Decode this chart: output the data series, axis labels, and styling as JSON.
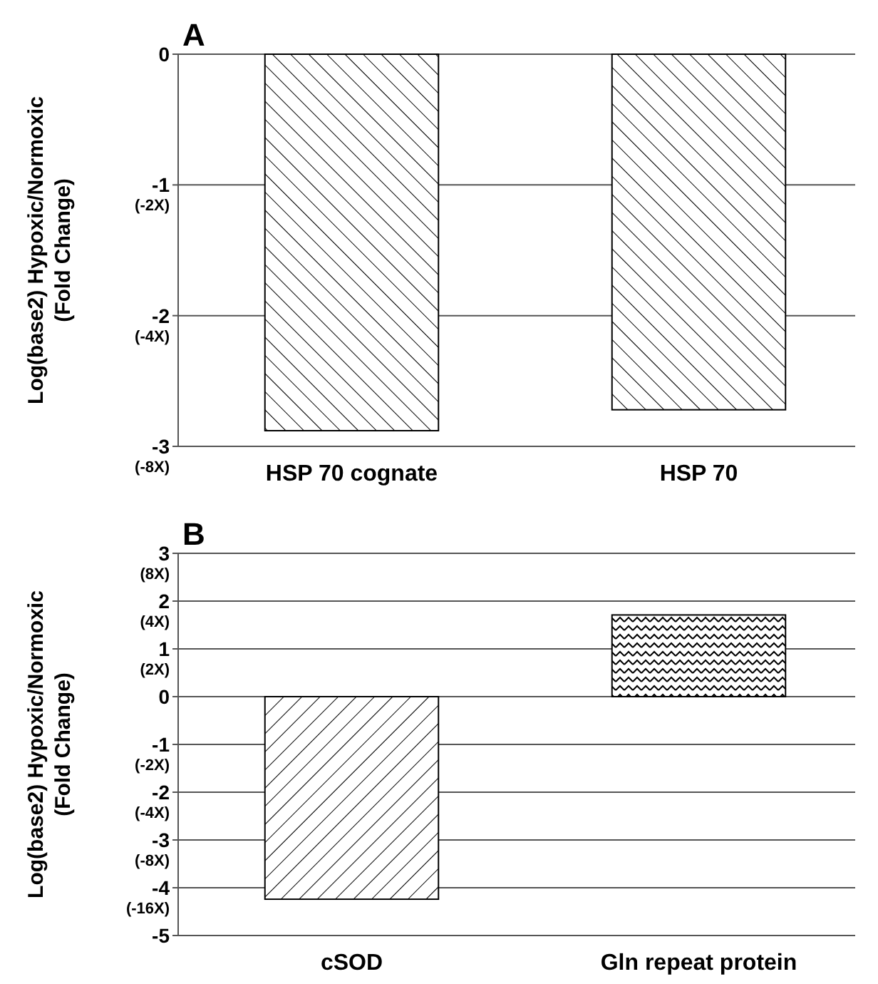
{
  "chart_data": [
    {
      "type": "bar",
      "title": "A",
      "ylabel": "Log(base2) Hypoxic/Normoxic\n(Fold Change)",
      "categories": [
        "HSP 70 cognate",
        "HSP 70"
      ],
      "values": [
        -2.88,
        -2.72
      ],
      "color": "#000000",
      "ylim": [
        -3,
        0
      ],
      "yticks": [
        0,
        -1,
        -2,
        -3
      ],
      "grid": "y",
      "annotations": [
        "(-2X)",
        "(-4X)",
        "(-8X)"
      ]
    },
    {
      "type": "bar",
      "title": "B",
      "ylabel": "Log(base2) Hypoxic/Normoxic\n(Fold Change)",
      "categories": [
        "cSOD",
        "Gln repeat protein"
      ],
      "values": [
        -4.24,
        1.71
      ],
      "color": "#000000",
      "ylim": [
        -5,
        3
      ],
      "yticks": [
        3,
        2,
        1,
        0,
        -1,
        -2,
        -3,
        -4,
        -5
      ],
      "grid": "y",
      "annotations": [
        "(8X)",
        "(4X)",
        "(2X)",
        "(-2X)",
        "(-4X)",
        "(-8X)",
        "(-16X)"
      ]
    }
  ]
}
